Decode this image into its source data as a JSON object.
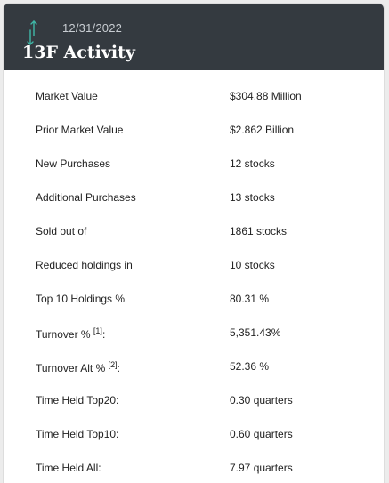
{
  "header": {
    "icon": "arrows-up-down-icon",
    "date": "12/31/2022",
    "title": "13F Activity"
  },
  "rows": [
    {
      "label": "Market Value",
      "value": "$304.88 Million"
    },
    {
      "label": "Prior Market Value",
      "value": "$2.862 Billion"
    },
    {
      "label": "New Purchases",
      "value": "12 stocks"
    },
    {
      "label": "Additional Purchases",
      "value": "13 stocks"
    },
    {
      "label": "Sold out of",
      "value": "1861 stocks"
    },
    {
      "label": "Reduced holdings in",
      "value": "10 stocks"
    },
    {
      "label": "Top 10 Holdings %",
      "value": "80.31 %"
    },
    {
      "label": "Turnover %",
      "footnote": "[1]",
      "suffix": ":",
      "value": "5,351.43%"
    },
    {
      "label": "Turnover Alt %",
      "footnote": "[2]",
      "suffix": ":",
      "value": "52.36 %"
    },
    {
      "label": "Time Held Top20:",
      "value": "0.30 quarters"
    },
    {
      "label": "Time Held Top10:",
      "value": "0.60 quarters"
    },
    {
      "label": "Time Held All:",
      "value": "7.97 quarters"
    }
  ],
  "colors": {
    "header_bg": "#343a40",
    "icon_accent": "#3fb8a8"
  }
}
